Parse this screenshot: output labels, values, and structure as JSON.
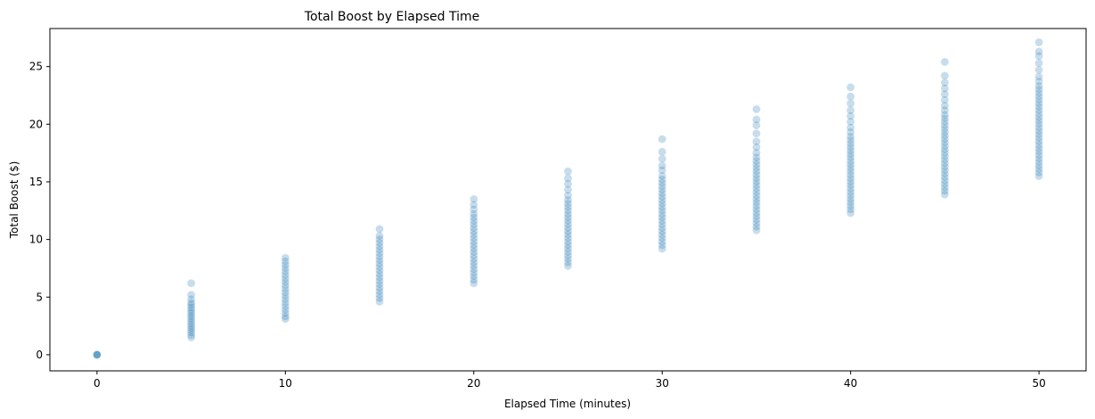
{
  "chart_data": {
    "type": "scatter",
    "title": "Total Boost by Elapsed Time",
    "xlabel": "Elapsed Time (minutes)",
    "ylabel": "Total Boost ($)",
    "xlim": [
      -2.5,
      52.5
    ],
    "ylim": [
      -1.4,
      28.3
    ],
    "xticks": [
      0,
      10,
      20,
      30,
      40,
      50
    ],
    "yticks": [
      0,
      5,
      10,
      15,
      20,
      25
    ],
    "grid": false,
    "legend": "none",
    "color": "#1f77b4",
    "point_alpha": 0.25,
    "groups": [
      {
        "x": 0,
        "min": 0,
        "max": 0,
        "values": [
          0,
          0,
          0,
          0
        ]
      },
      {
        "x": 5,
        "min": 1.5,
        "max": 6.2,
        "values": [
          1.5,
          1.7,
          1.9,
          2.1,
          2.3,
          2.5,
          2.7,
          2.9,
          3.1,
          3.3,
          3.5,
          3.7,
          3.9,
          4.1,
          4.3,
          4.5,
          4.8,
          5.2,
          6.2
        ]
      },
      {
        "x": 10,
        "min": 3.1,
        "max": 8.4,
        "values": [
          3.1,
          3.3,
          3.6,
          3.9,
          4.2,
          4.5,
          4.8,
          5.1,
          5.4,
          5.7,
          6.0,
          6.3,
          6.6,
          6.9,
          7.2,
          7.5,
          7.8,
          8.1,
          8.4
        ]
      },
      {
        "x": 15,
        "min": 4.6,
        "max": 10.9,
        "values": [
          4.6,
          4.9,
          5.2,
          5.5,
          5.8,
          6.1,
          6.4,
          6.7,
          7.0,
          7.3,
          7.6,
          7.9,
          8.2,
          8.5,
          8.8,
          9.1,
          9.4,
          9.7,
          10.0,
          10.3,
          10.9
        ]
      },
      {
        "x": 20,
        "min": 6.2,
        "max": 13.5,
        "values": [
          6.2,
          6.5,
          6.8,
          7.1,
          7.4,
          7.7,
          8.0,
          8.3,
          8.6,
          8.9,
          9.2,
          9.5,
          9.8,
          10.1,
          10.4,
          10.7,
          11.0,
          11.3,
          11.6,
          11.9,
          12.2,
          12.6,
          13.0,
          13.5
        ]
      },
      {
        "x": 25,
        "min": 7.7,
        "max": 15.9,
        "values": [
          7.7,
          8.0,
          8.3,
          8.6,
          8.9,
          9.2,
          9.5,
          9.8,
          10.1,
          10.4,
          10.7,
          11.0,
          11.3,
          11.6,
          11.9,
          12.2,
          12.5,
          12.8,
          13.1,
          13.4,
          13.8,
          14.3,
          14.8,
          15.3,
          15.9
        ]
      },
      {
        "x": 30,
        "min": 9.2,
        "max": 18.7,
        "values": [
          9.2,
          9.5,
          9.8,
          10.1,
          10.4,
          10.7,
          11.0,
          11.3,
          11.6,
          11.9,
          12.2,
          12.5,
          12.8,
          13.1,
          13.4,
          13.7,
          14.0,
          14.3,
          14.6,
          14.9,
          15.2,
          15.5,
          16.0,
          16.4,
          17.0,
          17.6,
          18.7
        ]
      },
      {
        "x": 35,
        "min": 10.8,
        "max": 21.3,
        "values": [
          10.8,
          11.1,
          11.4,
          11.7,
          12.0,
          12.3,
          12.6,
          12.9,
          13.2,
          13.5,
          13.8,
          14.1,
          14.4,
          14.7,
          15.0,
          15.3,
          15.6,
          15.9,
          16.2,
          16.5,
          16.8,
          17.1,
          17.5,
          18.0,
          18.5,
          19.2,
          19.9,
          20.4,
          21.3
        ]
      },
      {
        "x": 40,
        "min": 12.3,
        "max": 23.2,
        "values": [
          12.3,
          12.6,
          12.9,
          13.2,
          13.5,
          13.8,
          14.1,
          14.4,
          14.7,
          15.0,
          15.3,
          15.6,
          15.9,
          16.2,
          16.5,
          16.8,
          17.1,
          17.4,
          17.7,
          18.0,
          18.3,
          18.6,
          18.9,
          19.3,
          19.7,
          20.2,
          20.7,
          21.2,
          21.8,
          22.4,
          23.2
        ]
      },
      {
        "x": 45,
        "min": 13.9,
        "max": 25.4,
        "values": [
          13.9,
          14.2,
          14.5,
          14.8,
          15.1,
          15.4,
          15.7,
          16.0,
          16.3,
          16.6,
          16.9,
          17.2,
          17.5,
          17.8,
          18.1,
          18.4,
          18.7,
          19.0,
          19.3,
          19.6,
          19.9,
          20.2,
          20.5,
          20.8,
          21.2,
          21.6,
          22.1,
          22.6,
          23.1,
          23.6,
          24.2,
          25.4
        ]
      },
      {
        "x": 50,
        "min": 15.5,
        "max": 27.1,
        "values": [
          15.5,
          15.8,
          16.1,
          16.4,
          16.7,
          17.0,
          17.3,
          17.6,
          17.9,
          18.2,
          18.5,
          18.8,
          19.1,
          19.4,
          19.7,
          20.0,
          20.3,
          20.6,
          20.9,
          21.2,
          21.5,
          21.8,
          22.1,
          22.4,
          22.7,
          23.0,
          23.3,
          23.7,
          24.1,
          24.7,
          25.3,
          25.9,
          26.3,
          27.1
        ]
      }
    ]
  }
}
